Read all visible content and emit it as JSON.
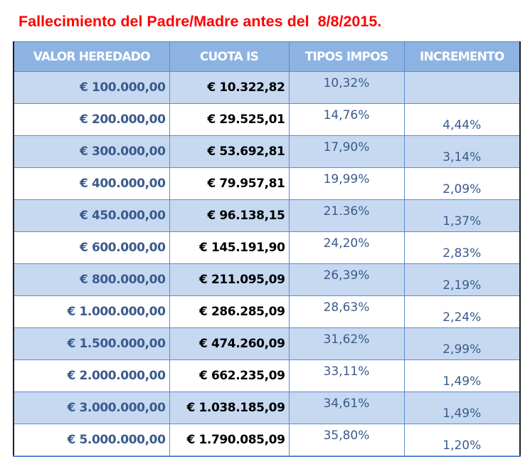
{
  "title": "Fallecimiento del Padre/Madre antes del  8/8/2015.",
  "colors": {
    "title": "#ff0000",
    "header_bg": "#8db3e2",
    "header_text": "#ffffff",
    "row_band": "#c6d9f1",
    "row_plain": "#ffffff",
    "border": "#5b8bd0",
    "value_text": "#3a5a8c",
    "cuota_text": "#000000"
  },
  "table": {
    "headers": [
      "VALOR HEREDADO",
      "CUOTA IS",
      "TIPOS IMPOS",
      "INCREMENTO"
    ],
    "rows": [
      {
        "valor": "€ 100.000,00",
        "cuota": "€ 10.322,82",
        "tipo": "10,32%",
        "incremento": ""
      },
      {
        "valor": "€ 200.000,00",
        "cuota": "€ 29.525,01",
        "tipo": "14,76%",
        "incremento": "4,44%"
      },
      {
        "valor": "€ 300.000,00",
        "cuota": "€ 53.692,81",
        "tipo": "17,90%",
        "incremento": "3,14%"
      },
      {
        "valor": "€ 400.000,00",
        "cuota": "€ 79.957,81",
        "tipo": "19,99%",
        "incremento": "2,09%"
      },
      {
        "valor": "€ 450.000,00",
        "cuota": "€ 96.138,15",
        "tipo": "21.36%",
        "incremento": "1,37%"
      },
      {
        "valor": "€ 600.000,00",
        "cuota": "€ 145.191,90",
        "tipo": "24,20%",
        "incremento": "2,83%"
      },
      {
        "valor": "€ 800.000,00",
        "cuota": "€ 211.095,09",
        "tipo": "26,39%",
        "incremento": "2,19%"
      },
      {
        "valor": "€ 1.000.000,00",
        "cuota": "€ 286.285,09",
        "tipo": "28,63%",
        "incremento": "2,24%"
      },
      {
        "valor": "€ 1.500.000,00",
        "cuota": "€ 474.260,09",
        "tipo": "31,62%",
        "incremento": "2,99%"
      },
      {
        "valor": "€ 2.000.000,00",
        "cuota": "€ 662.235,09",
        "tipo": "33,11%",
        "incremento": "1,49%"
      },
      {
        "valor": "€ 3.000.000,00",
        "cuota": "€ 1.038.185,09",
        "tipo": "34,61%",
        "incremento": "1,49%"
      },
      {
        "valor": "€ 5.000.000,00",
        "cuota": "€ 1.790.085,09",
        "tipo": "35,80%",
        "incremento": "1,20%"
      }
    ]
  }
}
